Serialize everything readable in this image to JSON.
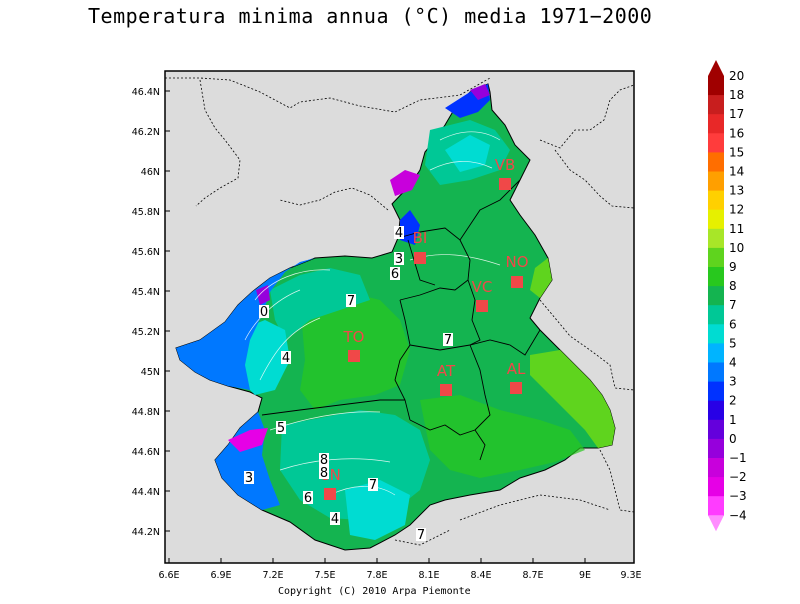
{
  "title": "Temperatura minima annua  (°C)  media 1971−2000",
  "copyright": "Copyright (C) 2010 Arpa Piemonte",
  "map": {
    "lat_ticks": [
      "46.4N",
      "46.2N",
      "46N",
      "45.8N",
      "45.6N",
      "45.4N",
      "45.2N",
      "45N",
      "44.8N",
      "44.6N",
      "44.4N",
      "44.2N"
    ],
    "lon_ticks": [
      "6.6E",
      "6.9E",
      "7.2E",
      "7.5E",
      "7.8E",
      "8.1E",
      "8.4E",
      "8.7E",
      "9E",
      "9.3E"
    ],
    "cities": [
      {
        "label": "VB"
      },
      {
        "label": "BI"
      },
      {
        "label": "NO"
      },
      {
        "label": "VC"
      },
      {
        "label": "TO"
      },
      {
        "label": "AT"
      },
      {
        "label": "AL"
      },
      {
        "label": "CN"
      }
    ],
    "contour_labels": [
      "4",
      "3",
      "6",
      "7",
      "0",
      "4",
      "7",
      "8",
      "5",
      "8",
      "3",
      "6",
      "7",
      "4",
      "7"
    ]
  },
  "legend": {
    "labels": [
      "20",
      "18",
      "17",
      "16",
      "15",
      "14",
      "13",
      "12",
      "11",
      "10",
      "9",
      "8",
      "7",
      "6",
      "5",
      "4",
      "3",
      "2",
      "1",
      "0",
      "−1",
      "−2",
      "−3",
      "−4"
    ],
    "colors": [
      "#a00000",
      "#c81e1e",
      "#e82828",
      "#ff3c3c",
      "#ff6e00",
      "#ff9f00",
      "#ffd000",
      "#e6f000",
      "#a8e628",
      "#5fd41e",
      "#28c81e",
      "#14b450",
      "#00c896",
      "#00dcd2",
      "#00b4ff",
      "#0078ff",
      "#0032ff",
      "#2800e6",
      "#6400dc",
      "#9600dc",
      "#c800dc",
      "#e600e6",
      "#ff3cff",
      "#ff8cff"
    ]
  }
}
